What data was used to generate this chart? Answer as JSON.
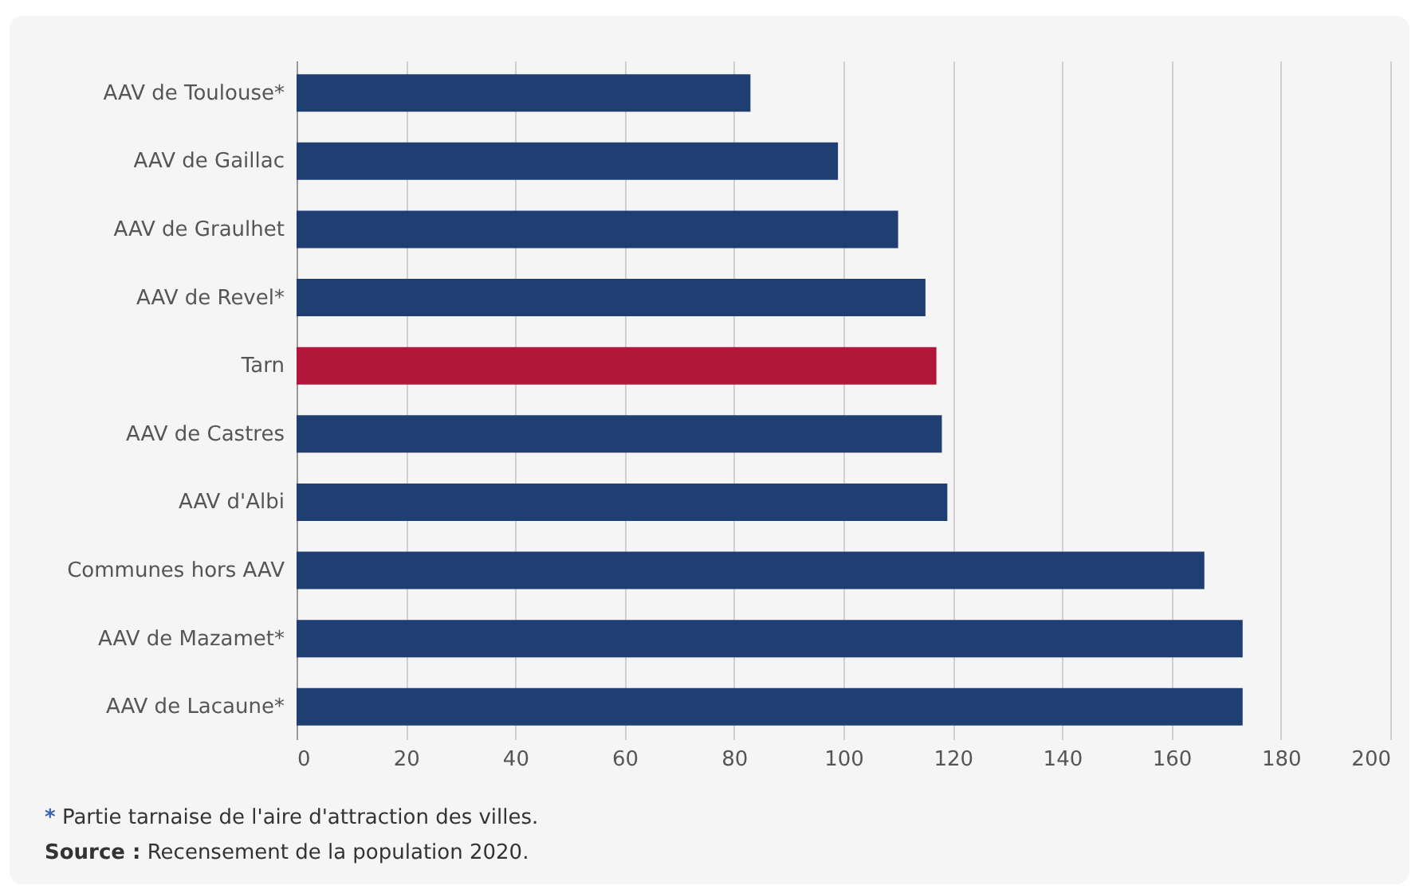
{
  "chart_data": {
    "type": "bar",
    "orientation": "horizontal",
    "categories": [
      "AAV de Toulouse*",
      "AAV de Gaillac",
      "AAV de Graulhet",
      "AAV de Revel*",
      "Tarn",
      "AAV de Castres",
      "AAV d'Albi",
      "Communes hors AAV",
      "AAV de Mazamet*",
      "AAV de Lacaune*"
    ],
    "values": [
      83,
      99,
      110,
      115,
      117,
      118,
      119,
      166,
      173,
      173
    ],
    "colors": [
      "#1f3f73",
      "#1f3f73",
      "#1f3f73",
      "#1f3f73",
      "#b0173b",
      "#1f3f73",
      "#1f3f73",
      "#1f3f73",
      "#1f3f73",
      "#1f3f73"
    ],
    "xlim": [
      0,
      200
    ],
    "xticks": [
      0,
      20,
      40,
      60,
      80,
      100,
      120,
      140,
      160,
      180,
      200
    ],
    "grid": "x",
    "annotations": [
      "* Partie tarnaise de l'aire d'attraction des villes.",
      "Source : Recensement de la population 2020."
    ]
  }
}
